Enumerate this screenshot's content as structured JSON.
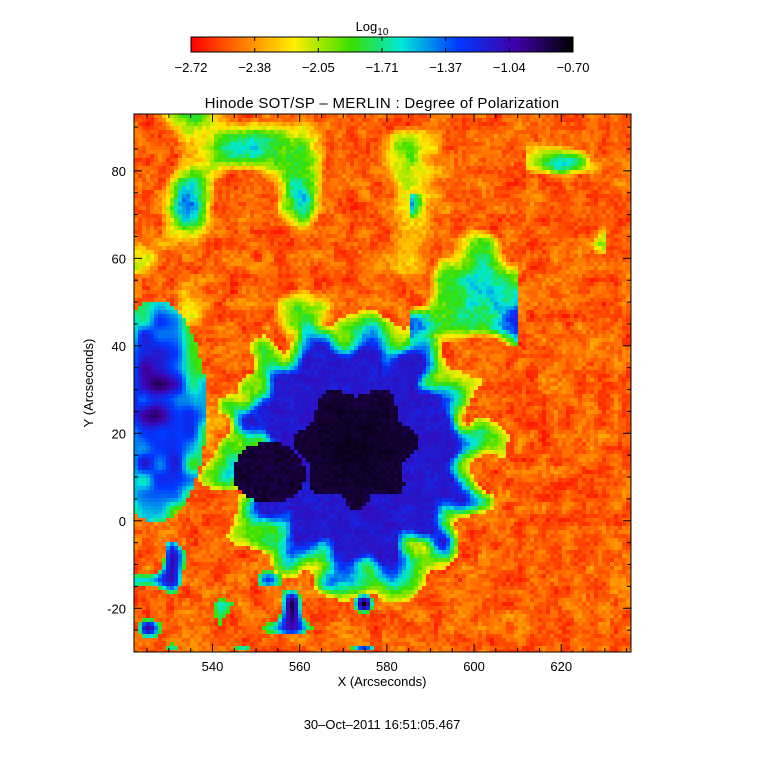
{
  "chart_data": {
    "type": "heatmap",
    "title": "Hinode SOT/SP – MERLIN : Degree of Polarization",
    "xlabel": "X (Arcseconds)",
    "ylabel": "Y (Arcseconds)",
    "footer": "30–Oct–2011 16:51:05.467",
    "xlim": [
      522,
      636
    ],
    "ylim": [
      -30,
      93
    ],
    "x_ticks": [
      540,
      560,
      580,
      600,
      620
    ],
    "y_ticks": [
      -20,
      0,
      20,
      40,
      60,
      80
    ],
    "colorbar": {
      "label_base": "Log",
      "label_sub": "10",
      "range": [
        -2.72,
        -0.7
      ],
      "tick_labels": [
        "−2.72",
        "−2.38",
        "−2.05",
        "−1.71",
        "−1.37",
        "−1.04",
        "−0.70"
      ],
      "colormap": "rainbow-reversed"
    },
    "features": [
      {
        "name": "sunspot-umbra",
        "center_x": 573,
        "center_y": 17,
        "radius_arcsec": 13,
        "value": -0.75
      },
      {
        "name": "umbra-extension",
        "center_x": 553,
        "center_y": 11,
        "radius_arcsec": 7,
        "value": -0.8
      },
      {
        "name": "penumbra",
        "center_x": 573,
        "center_y": 15,
        "radius_arcsec": 22,
        "value": -1.15
      },
      {
        "name": "pore-region-left",
        "center_x": 527,
        "center_y": 25,
        "radius_arcsec": 14,
        "value": -1.25
      }
    ]
  }
}
